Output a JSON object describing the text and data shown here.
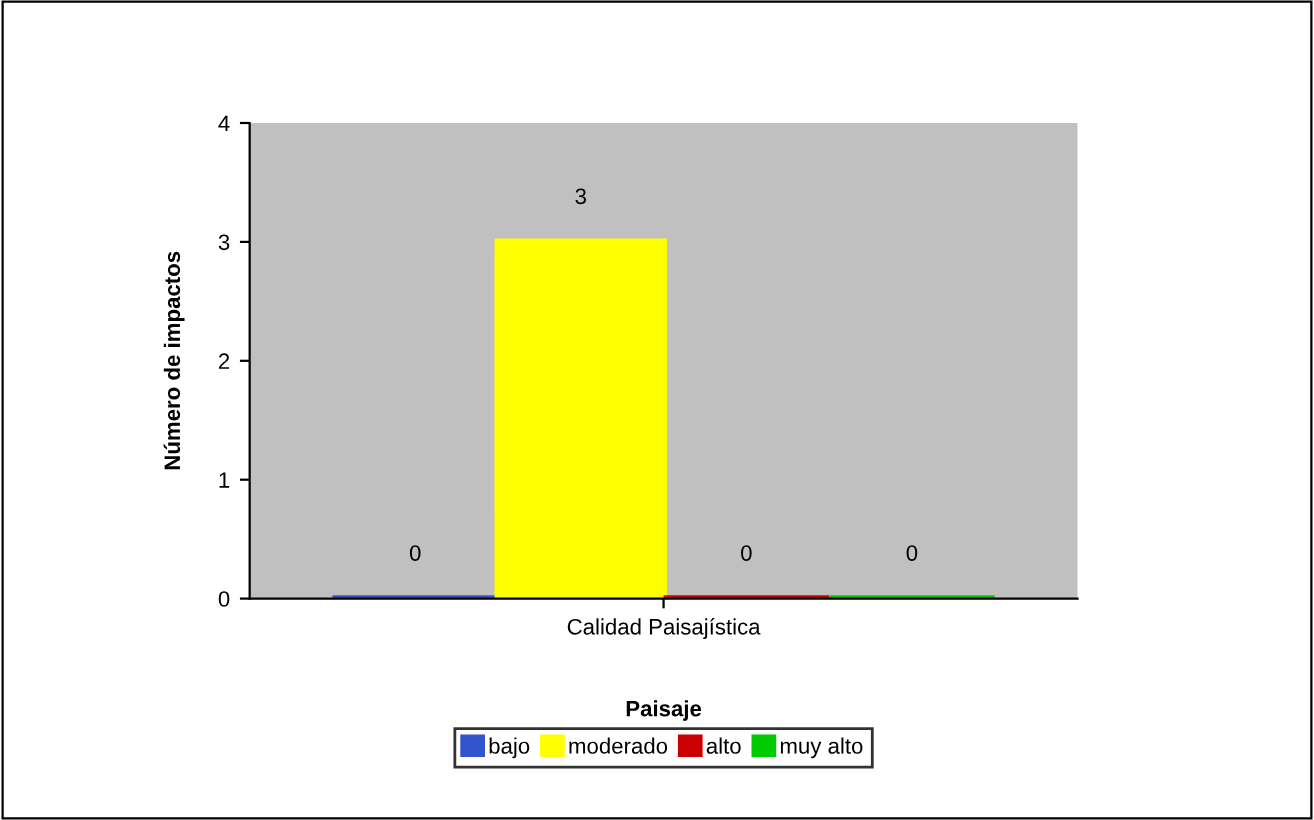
{
  "chart_data": {
    "type": "bar",
    "categories": [
      "Calidad Paisajística"
    ],
    "xlabel": "Paisaje",
    "ylabel": "Número de impactos",
    "series": [
      {
        "name": "bajo",
        "color": "#3355cc",
        "values": [
          0
        ]
      },
      {
        "name": "moderado",
        "color": "#ffff00",
        "values": [
          3
        ]
      },
      {
        "name": "alto",
        "color": "#cc0000",
        "values": [
          0
        ]
      },
      {
        "name": "muy alto",
        "color": "#00cc00",
        "values": [
          0
        ]
      }
    ],
    "ylim": [
      0,
      4
    ],
    "yticks": [
      0,
      1,
      2,
      3,
      4
    ],
    "grid": false,
    "legend": "bottom",
    "data_labels": true
  }
}
